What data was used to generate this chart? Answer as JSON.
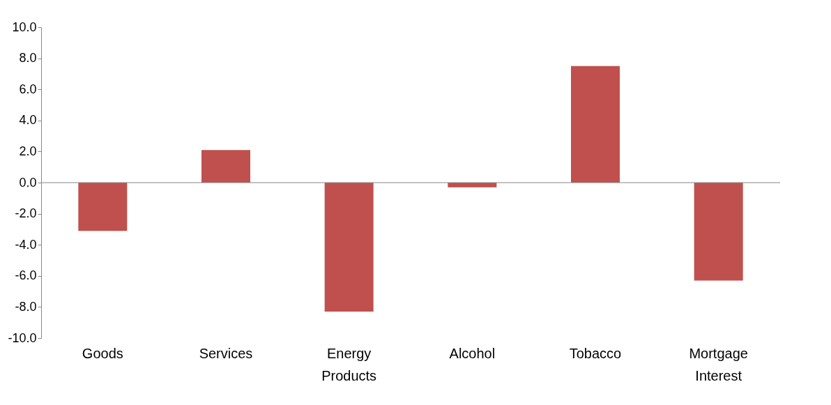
{
  "chart_data": {
    "type": "bar",
    "categories": [
      "Goods",
      "Services",
      "Energy Products",
      "Alcohol",
      "Tobacco",
      "Mortgage Interest"
    ],
    "values": [
      -3.1,
      2.1,
      -8.3,
      -0.3,
      7.5,
      -6.3
    ],
    "color": "#c0504d",
    "ylim": [
      -10,
      10
    ],
    "yticks": [
      {
        "value": -10,
        "label": "-10.0"
      },
      {
        "value": -8,
        "label": "-8.0"
      },
      {
        "value": -6,
        "label": "-6.0"
      },
      {
        "value": -4,
        "label": "-4.0"
      },
      {
        "value": -2,
        "label": "-2.0"
      },
      {
        "value": 0,
        "label": "0.0"
      },
      {
        "value": 2,
        "label": "2.0"
      },
      {
        "value": 4,
        "label": "4.0"
      },
      {
        "value": 6,
        "label": "6.0"
      },
      {
        "value": 8,
        "label": "8.0"
      },
      {
        "value": 10,
        "label": "10.0"
      }
    ]
  }
}
